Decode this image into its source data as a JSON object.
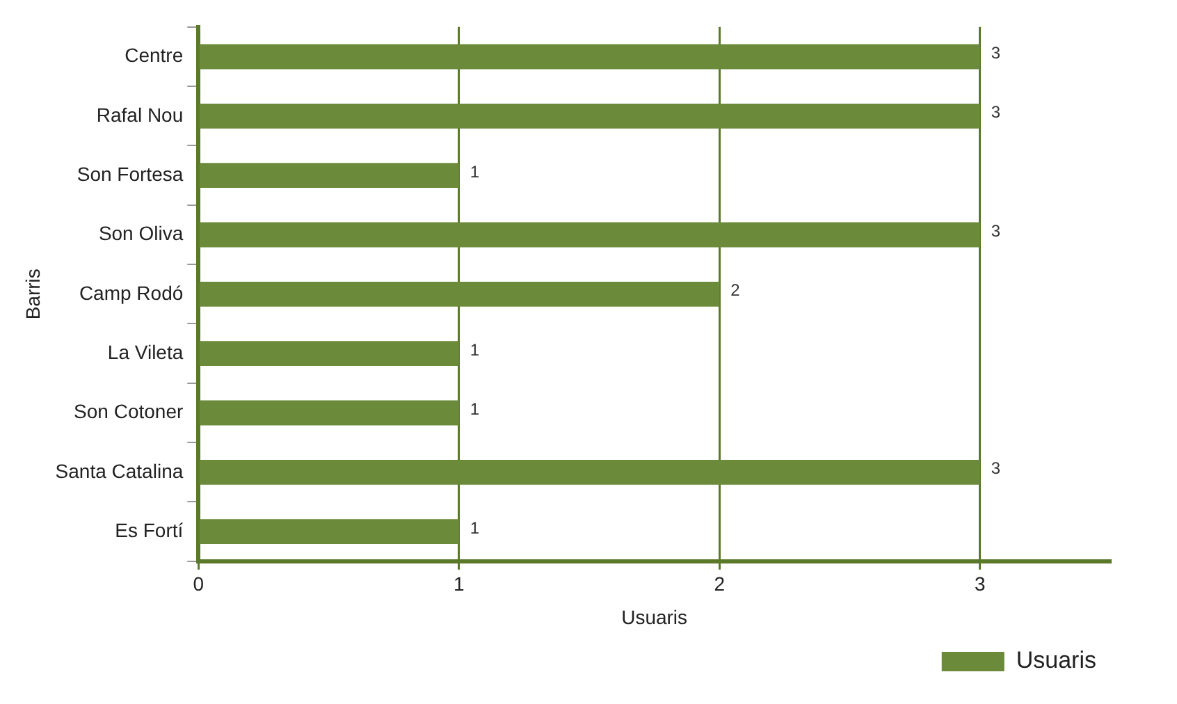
{
  "chart_data": {
    "type": "bar",
    "orientation": "horizontal",
    "xlabel": "Usuaris",
    "ylabel": "Barris",
    "categories": [
      "Centre",
      "Rafal Nou",
      "Son Fortesa",
      "Son Oliva",
      "Camp Rodó",
      "La Vileta",
      "Son Cotoner",
      "Santa Catalina",
      "Es Fortí"
    ],
    "series": [
      {
        "name": "Usuaris",
        "color": "#6b8a3a",
        "values": [
          3,
          3,
          1,
          3,
          2,
          1,
          1,
          3,
          1
        ]
      }
    ],
    "xlim": [
      0,
      3.5
    ],
    "xticks": [
      0,
      1,
      2,
      3
    ],
    "grid": "x",
    "legend": "bottom right",
    "data_labels": true
  }
}
